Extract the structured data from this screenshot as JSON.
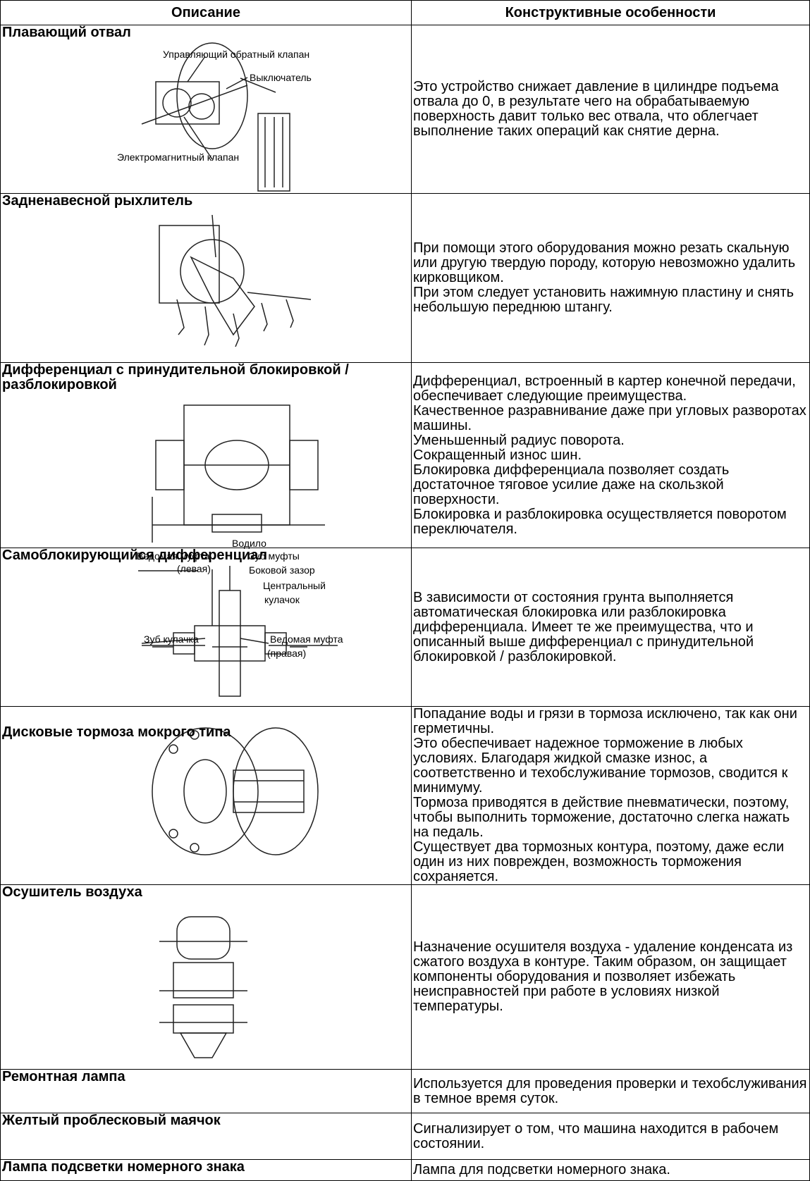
{
  "table": {
    "header": [
      "Описание",
      "Конструктивные особенности"
    ],
    "rows": [
      {
        "title": "Плавающий отвал",
        "figure_labels": [
          "Управляющий обратный клапан",
          "Выключатель",
          "Электромагнитный клапан"
        ],
        "text": [
          "Это устройство снижает давление в цилиндре подъема отвала до 0, в результате чего на обрабатываемую поверхность давит только вес отвала, что облегчает выполнение таких операций как снятие дерна."
        ]
      },
      {
        "title": "Задненавесной рыхлитель",
        "text": [
          "При помощи этого оборудования можно резать скальную или другую твердую породу, которую невозможно удалить кирковщиком.",
          "При этом следует установить нажимную пластину и снять небольшую переднюю штангу."
        ]
      },
      {
        "title": "Дифференциал с принудительной блокировкой / разблокировкой",
        "text": [
          "Дифференциал, встроенный в картер конечной передачи, обеспечивает следующие преимущества.",
          "Качественное разравнивание даже при угловых разворотах машины.",
          "Уменьшенный радиус поворота.",
          "Сокращенный износ шин.",
          "Блокировка дифференциала позволяет создать достаточное тяговое усилие даже на скользкой поверхности.",
          "Блокировка и разблокировка осуществляется поворотом переключателя."
        ]
      },
      {
        "title": "Самоблокирующийся дифференциал",
        "figure_labels": [
          "Водило",
          "Ведомая муфта",
          "(левая)",
          "Зуб муфты",
          "Боковой зазор",
          "Центральный",
          "кулачок",
          "Зуб кулачка",
          "Ведомая муфта",
          "(правая)"
        ],
        "text": [
          "В зависимости от состояния грунта выполняется автоматическая блокировка или разблокировка дифференциала. Имеет те же преимущества, что и описанный выше дифференциал с принудительной блокировкой / разблокировкой."
        ]
      },
      {
        "title": "Дисковые тормоза мокрого типа",
        "text": [
          "Попадание воды и грязи в тормоза исключено, так как они герметичны.",
          "Это обеспечивает надежное торможение в любых условиях. Благодаря жидкой смазке износ, а соответственно и техобслуживание тормозов, сводится к минимуму.",
          "Тормоза приводятся в действие пневматически, поэтому, чтобы выполнить торможение, достаточно слегка нажать на педаль.",
          "Существует два тормозных контура, поэтому, даже если один из них поврежден, возможность торможения сохраняется."
        ]
      },
      {
        "title": "Осушитель воздуха",
        "text": [
          "Назначение осушителя воздуха - удаление конденсата из сжатого воздуха в контуре. Таким образом, он защищает компоненты оборудования и позволяет избежать неисправностей при работе в условиях низкой температуры."
        ]
      },
      {
        "title": "Ремонтная лампа",
        "text": [
          "Используется для проведения проверки и техобслуживания в темное время суток."
        ]
      },
      {
        "title": "Желтый проблесковый маячок",
        "text": [
          "Сигнализирует о том, что машина находится в рабочем состоянии."
        ]
      },
      {
        "title": "Лампа подсветки номерного знака",
        "text": [
          "Лампа для подсветки номерного знака."
        ]
      }
    ]
  }
}
